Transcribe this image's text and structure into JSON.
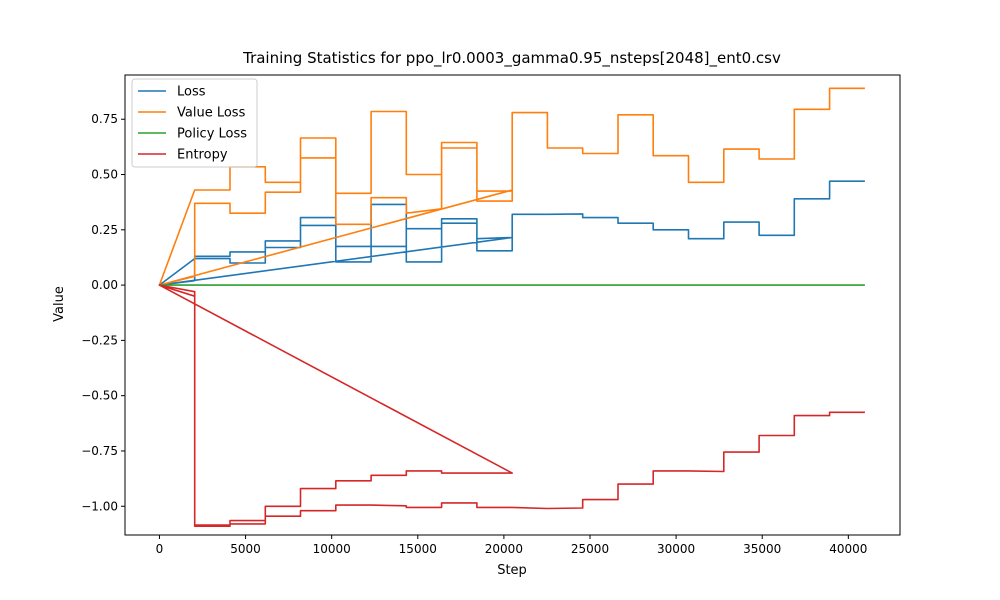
{
  "chart_data": {
    "type": "line",
    "title": "Training Statistics for ppo_lr0.0003_gamma0.95_nsteps[2048]_ent0.csv",
    "xlabel": "Step",
    "ylabel": "Value",
    "xlim": [
      -2000,
      43000
    ],
    "ylim": [
      -1.13,
      0.95
    ],
    "x_ticks": [
      0,
      5000,
      10000,
      15000,
      20000,
      25000,
      30000,
      35000,
      40000
    ],
    "y_ticks": [
      -1.0,
      -0.75,
      -0.5,
      -0.25,
      0.0,
      0.25,
      0.5,
      0.75
    ],
    "x_tick_labels": [
      "0",
      "5000",
      "10000",
      "15000",
      "20000",
      "25000",
      "30000",
      "35000",
      "40000"
    ],
    "y_tick_labels": [
      "−1.00",
      "−0.75",
      "−0.50",
      "−0.25",
      "0.00",
      "0.25",
      "0.50",
      "0.75"
    ],
    "grid": false,
    "legend_position": "top-left",
    "series": [
      {
        "name": "Loss",
        "color": "#1f77b4",
        "points": [
          [
            0,
            0.0
          ],
          [
            2048,
            0.02
          ],
          [
            2048,
            0.13
          ],
          [
            4096,
            0.13
          ],
          [
            4096,
            0.15
          ],
          [
            6144,
            0.15
          ],
          [
            6144,
            0.17
          ],
          [
            8192,
            0.17
          ],
          [
            8192,
            0.27
          ],
          [
            10240,
            0.27
          ],
          [
            10240,
            0.175
          ],
          [
            12288,
            0.175
          ],
          [
            12288,
            0.175
          ],
          [
            14336,
            0.175
          ],
          [
            14336,
            0.255
          ],
          [
            16384,
            0.255
          ],
          [
            16384,
            0.28
          ],
          [
            18432,
            0.28
          ],
          [
            18432,
            0.21
          ],
          [
            20480,
            0.215
          ],
          [
            0,
            0.0
          ],
          [
            2048,
            0.12
          ],
          [
            4096,
            0.12
          ],
          [
            4096,
            0.1
          ],
          [
            6144,
            0.1
          ],
          [
            6144,
            0.2
          ],
          [
            8192,
            0.2
          ],
          [
            8192,
            0.305
          ],
          [
            10240,
            0.305
          ],
          [
            10240,
            0.105
          ],
          [
            12288,
            0.105
          ],
          [
            12288,
            0.365
          ],
          [
            14336,
            0.365
          ],
          [
            14336,
            0.105
          ],
          [
            16384,
            0.105
          ],
          [
            16384,
            0.3
          ],
          [
            18432,
            0.3
          ],
          [
            18432,
            0.155
          ],
          [
            20480,
            0.155
          ],
          [
            20480,
            0.32
          ],
          [
            22528,
            0.32
          ],
          [
            24576,
            0.322
          ],
          [
            24576,
            0.305
          ],
          [
            26624,
            0.305
          ],
          [
            26624,
            0.28
          ],
          [
            28672,
            0.28
          ],
          [
            28672,
            0.25
          ],
          [
            30720,
            0.25
          ],
          [
            30720,
            0.21
          ],
          [
            32768,
            0.21
          ],
          [
            32768,
            0.285
          ],
          [
            34816,
            0.285
          ],
          [
            34816,
            0.225
          ],
          [
            36864,
            0.225
          ],
          [
            36864,
            0.39
          ],
          [
            38912,
            0.39
          ],
          [
            38912,
            0.47
          ],
          [
            40960,
            0.47
          ]
        ]
      },
      {
        "name": "Value Loss",
        "color": "#ff7f0e",
        "points": [
          [
            0,
            0.0
          ],
          [
            2048,
            0.04
          ],
          [
            2048,
            0.37
          ],
          [
            4096,
            0.37
          ],
          [
            4096,
            0.325
          ],
          [
            6144,
            0.325
          ],
          [
            6144,
            0.42
          ],
          [
            8192,
            0.42
          ],
          [
            8192,
            0.575
          ],
          [
            10240,
            0.575
          ],
          [
            10240,
            0.275
          ],
          [
            12288,
            0.275
          ],
          [
            12288,
            0.395
          ],
          [
            14336,
            0.395
          ],
          [
            14336,
            0.325
          ],
          [
            16384,
            0.345
          ],
          [
            16384,
            0.62
          ],
          [
            18432,
            0.62
          ],
          [
            18432,
            0.38
          ],
          [
            20480,
            0.38
          ],
          [
            20480,
            0.43
          ],
          [
            0,
            0.0
          ],
          [
            2048,
            0.43
          ],
          [
            4096,
            0.43
          ],
          [
            4096,
            0.535
          ],
          [
            6144,
            0.535
          ],
          [
            6144,
            0.465
          ],
          [
            8192,
            0.465
          ],
          [
            8192,
            0.665
          ],
          [
            10240,
            0.665
          ],
          [
            10240,
            0.415
          ],
          [
            12288,
            0.415
          ],
          [
            12288,
            0.785
          ],
          [
            14336,
            0.785
          ],
          [
            14336,
            0.5
          ],
          [
            16384,
            0.5
          ],
          [
            16384,
            0.645
          ],
          [
            18432,
            0.645
          ],
          [
            18432,
            0.425
          ],
          [
            20480,
            0.425
          ],
          [
            20480,
            0.78
          ],
          [
            22528,
            0.78
          ],
          [
            22528,
            0.62
          ],
          [
            24576,
            0.62
          ],
          [
            24576,
            0.595
          ],
          [
            26624,
            0.595
          ],
          [
            26624,
            0.77
          ],
          [
            28672,
            0.77
          ],
          [
            28672,
            0.585
          ],
          [
            30720,
            0.585
          ],
          [
            30720,
            0.465
          ],
          [
            32768,
            0.465
          ],
          [
            32768,
            0.615
          ],
          [
            34816,
            0.615
          ],
          [
            34816,
            0.57
          ],
          [
            36864,
            0.57
          ],
          [
            36864,
            0.795
          ],
          [
            38912,
            0.795
          ],
          [
            38912,
            0.89
          ],
          [
            40960,
            0.89
          ]
        ]
      },
      {
        "name": "Policy Loss",
        "color": "#2ca02c",
        "points": [
          [
            0,
            0.0
          ],
          [
            20480,
            0.0
          ],
          [
            40960,
            0.0
          ]
        ]
      },
      {
        "name": "Entropy",
        "color": "#d62728",
        "points": [
          [
            0,
            0.0
          ],
          [
            2048,
            -0.05
          ],
          [
            2048,
            -1.09
          ],
          [
            4096,
            -1.09
          ],
          [
            4096,
            -1.065
          ],
          [
            6144,
            -1.065
          ],
          [
            6144,
            -1.0
          ],
          [
            8192,
            -1.0
          ],
          [
            8192,
            -0.92
          ],
          [
            10240,
            -0.92
          ],
          [
            10240,
            -0.885
          ],
          [
            12288,
            -0.885
          ],
          [
            12288,
            -0.86
          ],
          [
            14336,
            -0.86
          ],
          [
            14336,
            -0.84
          ],
          [
            16384,
            -0.84
          ],
          [
            16384,
            -0.85
          ],
          [
            20480,
            -0.85
          ],
          [
            0,
            0.0
          ],
          [
            2048,
            -0.03
          ],
          [
            2048,
            -1.085
          ],
          [
            4096,
            -1.085
          ],
          [
            4096,
            -1.08
          ],
          [
            6144,
            -1.08
          ],
          [
            6144,
            -1.045
          ],
          [
            8192,
            -1.045
          ],
          [
            8192,
            -1.02
          ],
          [
            10240,
            -1.02
          ],
          [
            10240,
            -0.995
          ],
          [
            12288,
            -0.995
          ],
          [
            14336,
            -0.998
          ],
          [
            14336,
            -1.005
          ],
          [
            16384,
            -1.005
          ],
          [
            16384,
            -0.985
          ],
          [
            18432,
            -0.985
          ],
          [
            18432,
            -1.005
          ],
          [
            20480,
            -1.005
          ],
          [
            22528,
            -1.01
          ],
          [
            24576,
            -1.008
          ],
          [
            24576,
            -0.97
          ],
          [
            26624,
            -0.97
          ],
          [
            26624,
            -0.9
          ],
          [
            28672,
            -0.9
          ],
          [
            28672,
            -0.84
          ],
          [
            30720,
            -0.84
          ],
          [
            32768,
            -0.843
          ],
          [
            32768,
            -0.755
          ],
          [
            34816,
            -0.755
          ],
          [
            34816,
            -0.68
          ],
          [
            36864,
            -0.68
          ],
          [
            36864,
            -0.59
          ],
          [
            38912,
            -0.59
          ],
          [
            38912,
            -0.575
          ],
          [
            40960,
            -0.575
          ]
        ]
      }
    ]
  }
}
